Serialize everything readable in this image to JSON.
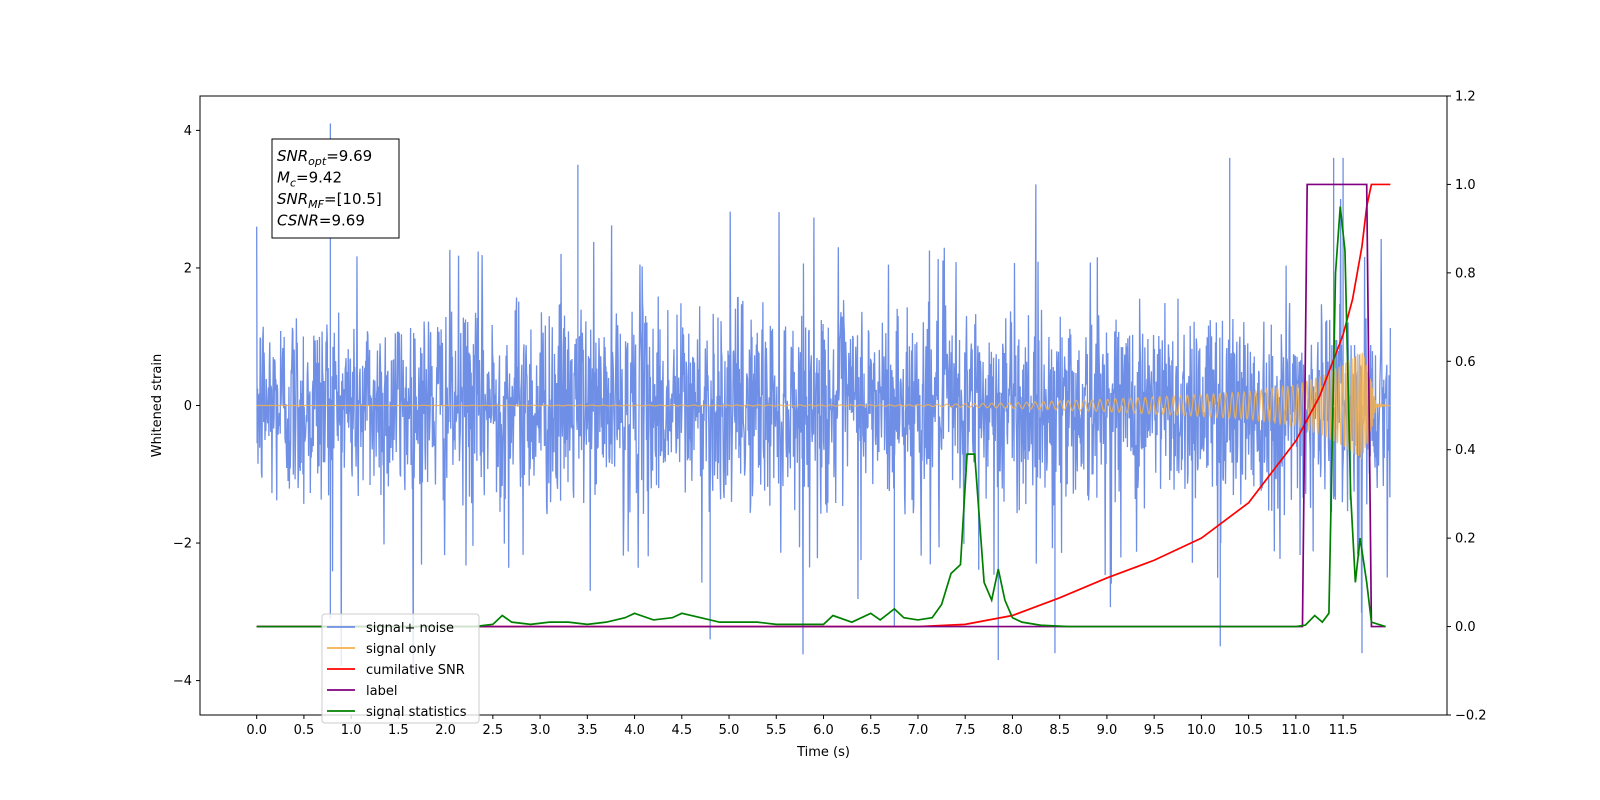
{
  "chart_data": {
    "type": "line",
    "title": "",
    "xlabel": "Time (s)",
    "ylabel_left": "Whitened strain",
    "ylabel_right": "",
    "xlim": [
      -0.6,
      12.6
    ],
    "ylim_left": [
      -4.5,
      4.5
    ],
    "ylim_right": [
      -0.2,
      1.2
    ],
    "x_ticks": [
      0.0,
      0.5,
      1.0,
      1.5,
      2.0,
      2.5,
      3.0,
      3.5,
      4.0,
      4.5,
      5.0,
      5.5,
      6.0,
      6.5,
      7.0,
      7.5,
      8.0,
      8.5,
      9.0,
      9.5,
      10.0,
      10.5,
      11.0,
      11.5
    ],
    "x_tick_labels": [
      "0.0",
      "0.5",
      "1.0",
      "1.5",
      "2.0",
      "2.5",
      "3.0",
      "3.5",
      "4.0",
      "4.5",
      "5.0",
      "5.5",
      "6.0",
      "6.5",
      "7.0",
      "7.5",
      "8.0",
      "8.5",
      "9.0",
      "9.5",
      "10.0",
      "10.5",
      "11.0",
      "11.5"
    ],
    "y_ticks_left": [
      -4,
      -2,
      0,
      2,
      4
    ],
    "y_tick_labels_left": [
      "−4",
      "−2",
      "0",
      "2",
      "4"
    ],
    "y_ticks_right": [
      -0.2,
      0.0,
      0.2,
      0.4,
      0.6,
      0.8,
      1.0,
      1.2
    ],
    "y_tick_labels_right": [
      "−0.2",
      "0.0",
      "0.2",
      "0.4",
      "0.6",
      "0.8",
      "1.0",
      "1.2"
    ],
    "grid": false,
    "legend_position": "lower-left",
    "series": [
      {
        "name": "signal+ noise",
        "axis": "left",
        "color": "#6f8fe6",
        "style": "noise",
        "x_range": [
          0.0,
          12.0
        ],
        "std": 0.75,
        "peaks": [
          [
            0.78,
            4.1
          ],
          [
            0.78,
            -3.1
          ],
          [
            4.8,
            -3.4
          ],
          [
            6.75,
            -3.2
          ],
          [
            7.85,
            -3.7
          ],
          [
            8.45,
            -3.6
          ],
          [
            10.2,
            -3.5
          ],
          [
            11.5,
            3.6
          ],
          [
            11.7,
            -3.6
          ],
          [
            3.4,
            3.5
          ],
          [
            11.4,
            3.6
          ],
          [
            10.3,
            3.6
          ]
        ]
      },
      {
        "name": "signal only",
        "axis": "left",
        "color": "#f5b14d",
        "style": "chirp",
        "x_range": [
          0.0,
          12.0
        ],
        "merger_time": 11.75,
        "envelope": [
          [
            0.0,
            0.0
          ],
          [
            7.0,
            0.01
          ],
          [
            8.0,
            0.04
          ],
          [
            9.0,
            0.09
          ],
          [
            10.0,
            0.16
          ],
          [
            10.5,
            0.2
          ],
          [
            11.0,
            0.3
          ],
          [
            11.3,
            0.45
          ],
          [
            11.5,
            0.6
          ],
          [
            11.7,
            0.8
          ],
          [
            11.78,
            0.5
          ],
          [
            11.85,
            0.02
          ],
          [
            12.0,
            0.0
          ]
        ]
      },
      {
        "name": "cumilative SNR",
        "axis": "right",
        "color": "#ff0000",
        "style": "line",
        "points": [
          [
            0.0,
            0.0
          ],
          [
            6.0,
            0.0
          ],
          [
            7.0,
            0.0
          ],
          [
            7.5,
            0.005
          ],
          [
            8.0,
            0.025
          ],
          [
            8.5,
            0.065
          ],
          [
            9.0,
            0.11
          ],
          [
            9.5,
            0.15
          ],
          [
            10.0,
            0.2
          ],
          [
            10.5,
            0.28
          ],
          [
            11.0,
            0.42
          ],
          [
            11.25,
            0.52
          ],
          [
            11.5,
            0.66
          ],
          [
            11.6,
            0.74
          ],
          [
            11.7,
            0.86
          ],
          [
            11.75,
            0.95
          ],
          [
            11.8,
            1.0
          ],
          [
            12.0,
            1.0
          ]
        ]
      },
      {
        "name": "label",
        "axis": "right",
        "color": "#800080",
        "style": "line",
        "points": [
          [
            0.0,
            0.0
          ],
          [
            11.07,
            0.0
          ],
          [
            11.12,
            1.0
          ],
          [
            11.75,
            1.0
          ],
          [
            11.8,
            0.0
          ],
          [
            11.95,
            0.0
          ]
        ]
      },
      {
        "name": "signal statistics",
        "axis": "right",
        "color": "#008000",
        "style": "line",
        "points": [
          [
            0.0,
            0.0
          ],
          [
            2.3,
            0.0
          ],
          [
            2.5,
            0.005
          ],
          [
            2.6,
            0.025
          ],
          [
            2.7,
            0.01
          ],
          [
            2.9,
            0.005
          ],
          [
            3.1,
            0.01
          ],
          [
            3.3,
            0.01
          ],
          [
            3.5,
            0.005
          ],
          [
            3.7,
            0.01
          ],
          [
            3.9,
            0.02
          ],
          [
            4.0,
            0.03
          ],
          [
            4.2,
            0.015
          ],
          [
            4.4,
            0.02
          ],
          [
            4.5,
            0.03
          ],
          [
            4.7,
            0.02
          ],
          [
            4.9,
            0.01
          ],
          [
            5.1,
            0.01
          ],
          [
            5.3,
            0.01
          ],
          [
            5.5,
            0.005
          ],
          [
            5.8,
            0.005
          ],
          [
            6.0,
            0.005
          ],
          [
            6.1,
            0.025
          ],
          [
            6.3,
            0.01
          ],
          [
            6.5,
            0.03
          ],
          [
            6.6,
            0.015
          ],
          [
            6.75,
            0.04
          ],
          [
            6.85,
            0.02
          ],
          [
            7.0,
            0.015
          ],
          [
            7.15,
            0.02
          ],
          [
            7.25,
            0.05
          ],
          [
            7.35,
            0.12
          ],
          [
            7.45,
            0.14
          ],
          [
            7.52,
            0.39
          ],
          [
            7.6,
            0.39
          ],
          [
            7.7,
            0.1
          ],
          [
            7.78,
            0.06
          ],
          [
            7.85,
            0.13
          ],
          [
            7.92,
            0.06
          ],
          [
            8.0,
            0.02
          ],
          [
            8.1,
            0.01
          ],
          [
            8.3,
            0.003
          ],
          [
            8.6,
            0.0
          ],
          [
            11.0,
            0.0
          ],
          [
            11.1,
            0.003
          ],
          [
            11.2,
            0.025
          ],
          [
            11.28,
            0.01
          ],
          [
            11.35,
            0.03
          ],
          [
            11.42,
            0.8
          ],
          [
            11.47,
            0.95
          ],
          [
            11.52,
            0.85
          ],
          [
            11.58,
            0.3
          ],
          [
            11.63,
            0.1
          ],
          [
            11.68,
            0.2
          ],
          [
            11.75,
            0.1
          ],
          [
            11.8,
            0.01
          ],
          [
            11.95,
            0.0
          ]
        ]
      }
    ],
    "annotation": {
      "lines": [
        {
          "main": "SNR",
          "sub": "opt",
          "value": "=9.69"
        },
        {
          "main": "M",
          "sub": "c",
          "value": "=9.42"
        },
        {
          "main": "SNR",
          "sub": "MF",
          "value": "=[10.5]"
        },
        {
          "main": "CSNR",
          "sub": "",
          "value": "=9.69"
        }
      ]
    },
    "legend": [
      {
        "label": "signal+ noise",
        "color": "#6f8fe6"
      },
      {
        "label": "signal only",
        "color": "#f5b14d"
      },
      {
        "label": "cumilative SNR",
        "color": "#ff0000"
      },
      {
        "label": "label",
        "color": "#800080"
      },
      {
        "label": "signal statistics",
        "color": "#008000"
      }
    ]
  }
}
